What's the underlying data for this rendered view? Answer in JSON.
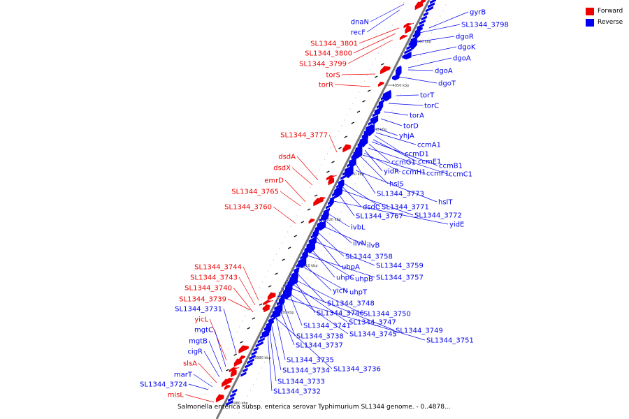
{
  "legend": {
    "forward_label": "Forward",
    "reverse_label": "Reverse",
    "forward_color": "#ee0000",
    "reverse_color": "#0000ee"
  },
  "caption": "Salmonella enterica subsp. enterica serovar Typhimurium SL1344 genome. - 0..4878...",
  "scale_ticks": [
    "4060 kbp",
    "4050 kbp",
    "4040 kbp",
    "4030 kbp",
    "4020 kbp",
    "4010 kbp",
    "4000 kbp",
    "3990 kbp",
    "3980 kbp"
  ],
  "forward_genes": [
    "dnaN",
    "recF",
    "SL1344_3801",
    "SL1344_3800",
    "SL1344_3799",
    "torS",
    "torR",
    "SL1344_3777",
    "dsdA",
    "dsdX",
    "emrD",
    "SL1344_3765",
    "SL1344_3760",
    "SL1344_3744",
    "SL1344_3743",
    "SL1344_3740",
    "SL1344_3739",
    "SL1344_3731",
    "yicL",
    "mgtC",
    "mgtB",
    "cigR",
    "slsA",
    "marT",
    "SL1344_3724",
    "misL"
  ],
  "reverse_genes": [
    "gyrB",
    "SL1344_3798",
    "dgoR",
    "dgoK",
    "dgoA",
    "dgoA",
    "dgoT",
    "torT",
    "torC",
    "torA",
    "torD",
    "yhjA",
    "ccmA1",
    "ccmD1",
    "ccmE1",
    "ccmB1",
    "ccmG1",
    "ccmC1",
    "yidR",
    "ccmH1",
    "ccmF1",
    "hslS",
    "SL1344_3773",
    "hslT",
    "dsdC",
    "SL1344_3771",
    "SL1344_3772",
    "SL1344_3767",
    "yidE",
    "ivbL",
    "ilvN",
    "ilvB",
    "SL1344_3758",
    "uhpA",
    "SL1344_3759",
    "uhpC",
    "uhpB",
    "SL1344_3757",
    "yicN",
    "uhpT",
    "SL1344_3748",
    "SL1344_3746",
    "SL1344_3750",
    "SL1344_3747",
    "SL1344_3741",
    "SL1344_3749",
    "SL1344_3745",
    "SL1344_3738",
    "SL1344_3751",
    "SL1344_3737",
    "SL1344_3735",
    "SL1344_3736",
    "SL1344_3734",
    "SL1344_3733",
    "SL1344_3732"
  ]
}
